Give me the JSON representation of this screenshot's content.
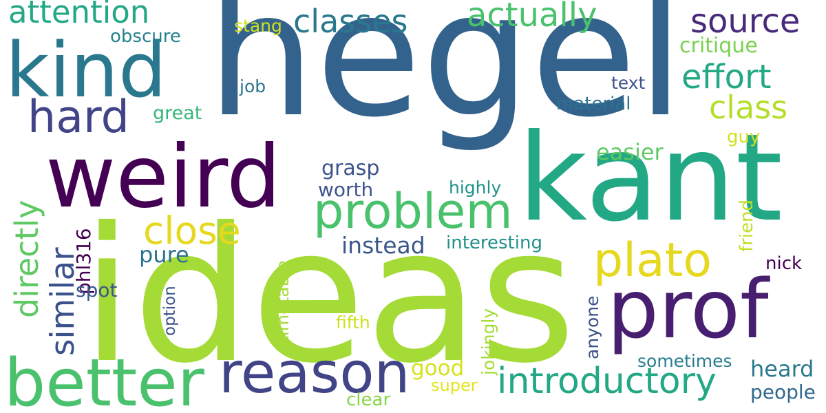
{
  "palette": {
    "background": "#ffffff",
    "yellow": "#e6d81f",
    "lime": "#a5db36",
    "green": "#4ac16d",
    "teal_green": "#22a884",
    "teal": "#2a788e",
    "blue": "#33638d",
    "indigo": "#414487",
    "purple": "#440154"
  },
  "words": [
    {
      "text": "hegel",
      "color": "#33638d"
    },
    {
      "text": "ideas",
      "color": "#a5db36"
    },
    {
      "text": "kant",
      "color": "#22a884"
    },
    {
      "text": "weird",
      "color": "#440154"
    },
    {
      "text": "kind",
      "color": "#2a788e"
    },
    {
      "text": "prof",
      "color": "#481f70"
    },
    {
      "text": "better",
      "color": "#4ac16d"
    },
    {
      "text": "reason",
      "color": "#414487"
    },
    {
      "text": "problem",
      "color": "#4ac16d"
    },
    {
      "text": "plato",
      "color": "#e6d81f"
    },
    {
      "text": "introductory",
      "color": "#22a884"
    },
    {
      "text": "close",
      "color": "#e6d81f"
    },
    {
      "text": "hard",
      "color": "#414487"
    },
    {
      "text": "attention",
      "color": "#22a884"
    },
    {
      "text": "classes",
      "color": "#2a788e"
    },
    {
      "text": "actually",
      "color": "#4ac16d"
    },
    {
      "text": "source",
      "color": "#472a7a"
    },
    {
      "text": "effort",
      "color": "#22a884"
    },
    {
      "text": "class",
      "color": "#b5de2b"
    },
    {
      "text": "directly",
      "color": "#5ec962"
    },
    {
      "text": "similar",
      "color": "#3b528b"
    },
    {
      "text": "critique",
      "color": "#7ad151"
    },
    {
      "text": "obscure",
      "color": "#26828e"
    },
    {
      "text": "stang",
      "color": "#d0e11c"
    },
    {
      "text": "text",
      "color": "#3b528b"
    },
    {
      "text": "material",
      "color": "#2c728e"
    },
    {
      "text": "great",
      "color": "#35b779"
    },
    {
      "text": "job",
      "color": "#2c728e"
    },
    {
      "text": "easier",
      "color": "#5ec962"
    },
    {
      "text": "guy",
      "color": "#d0e11c"
    },
    {
      "text": "grasp",
      "color": "#3b528b"
    },
    {
      "text": "worth",
      "color": "#3b528b"
    },
    {
      "text": "highly",
      "color": "#21918c"
    },
    {
      "text": "friend",
      "color": "#c2df23"
    },
    {
      "text": "phl316",
      "color": "#440154"
    },
    {
      "text": "pure",
      "color": "#2c728e"
    },
    {
      "text": "instead",
      "color": "#39568c"
    },
    {
      "text": "interesting",
      "color": "#21918c"
    },
    {
      "text": "nick",
      "color": "#440154"
    },
    {
      "text": "spot",
      "color": "#39568c"
    },
    {
      "text": "option",
      "color": "#3b528b"
    },
    {
      "text": "timetable",
      "color": "#a5db36"
    },
    {
      "text": "jokingly",
      "color": "#a5db36"
    },
    {
      "text": "anyone",
      "color": "#3b528b"
    },
    {
      "text": "fifth",
      "color": "#cde11d"
    },
    {
      "text": "good",
      "color": "#d5e21a"
    },
    {
      "text": "super",
      "color": "#e5e419"
    },
    {
      "text": "clear",
      "color": "#86d549"
    },
    {
      "text": "sometimes",
      "color": "#287c8e"
    },
    {
      "text": "heard",
      "color": "#2a788e"
    },
    {
      "text": "people",
      "color": "#31688e"
    }
  ]
}
